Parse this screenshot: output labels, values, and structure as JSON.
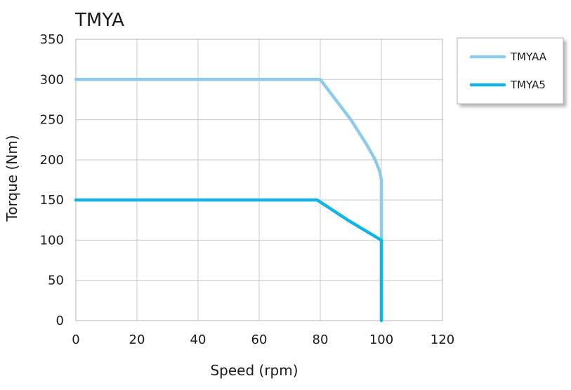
{
  "chart_data": {
    "type": "line",
    "title": "TMYA",
    "xlabel": "Speed (rpm)",
    "ylabel": "Torque (Nm)",
    "xlim": [
      0,
      120
    ],
    "ylim": [
      0,
      350
    ],
    "xticks": [
      0,
      20,
      40,
      60,
      80,
      100,
      120
    ],
    "yticks": [
      0,
      50,
      100,
      150,
      200,
      250,
      300,
      350
    ],
    "xtick_labels": [
      "0",
      "20",
      "40",
      "60",
      "80",
      "100",
      "120"
    ],
    "ytick_labels": [
      "0",
      "50",
      "100",
      "150",
      "200",
      "250",
      "300",
      "350"
    ],
    "grid": true,
    "legend_position": "right",
    "series": [
      {
        "name": "TMYAA",
        "color": "#8ecbe8",
        "x": [
          0,
          80,
          90,
          95,
          98,
          99.5,
          100,
          100
        ],
        "y": [
          300,
          300,
          250,
          220,
          200,
          185,
          175,
          0
        ]
      },
      {
        "name": "TMYA5",
        "color": "#12b3e6",
        "x": [
          0,
          79,
          89,
          100,
          100
        ],
        "y": [
          150,
          150,
          125,
          100,
          0
        ]
      }
    ]
  }
}
